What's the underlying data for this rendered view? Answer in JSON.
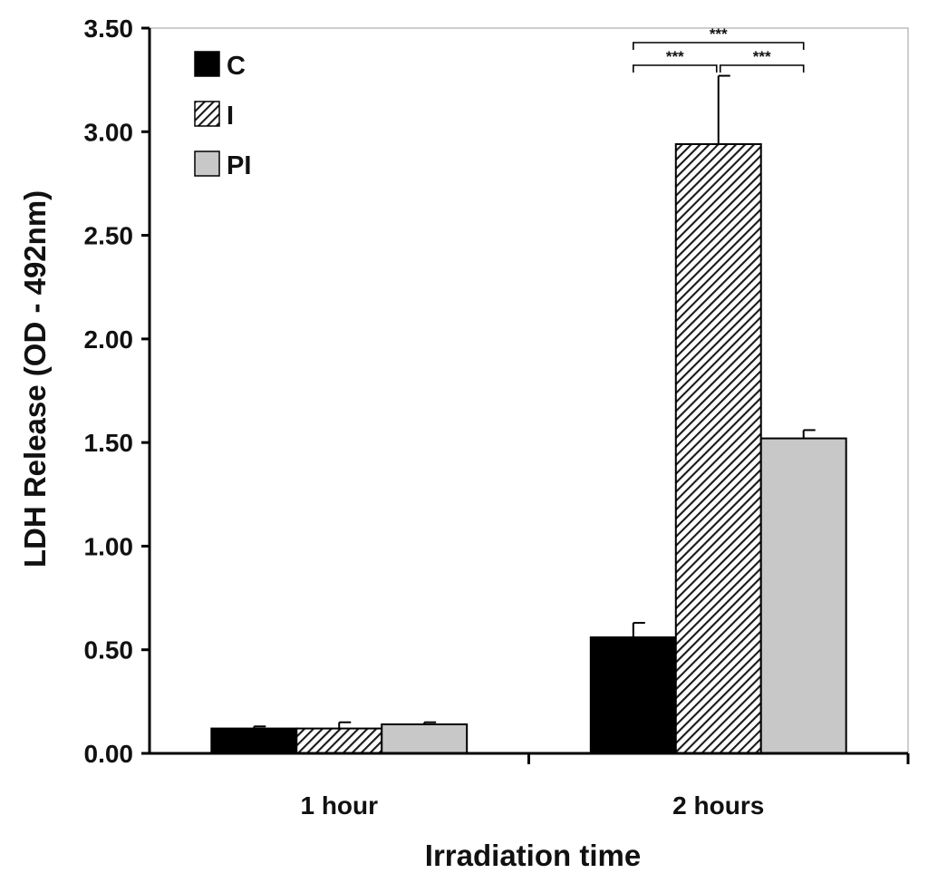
{
  "chart_data": {
    "type": "bar",
    "title": "",
    "xlabel": "Irradiation time",
    "ylabel": "LDH Release (OD - 492nm)",
    "categories": [
      "1 hour",
      "2 hours"
    ],
    "ylim": [
      0,
      3.5
    ],
    "yticks": [
      "0.00",
      "0.50",
      "1.00",
      "1.50",
      "2.00",
      "2.50",
      "3.00",
      "3.50"
    ],
    "grid": false,
    "legend_position": "top-left",
    "series": [
      {
        "name": "C",
        "values": [
          0.12,
          0.56
        ],
        "errors": [
          0.01,
          0.07
        ],
        "color": "#000000",
        "pattern": "solid"
      },
      {
        "name": "I",
        "values": [
          0.12,
          2.94
        ],
        "errors": [
          0.03,
          0.33
        ],
        "color": "#222222",
        "pattern": "hatched"
      },
      {
        "name": "PI",
        "values": [
          0.14,
          1.52
        ],
        "errors": [
          0.01,
          0.04
        ],
        "color": "#c8c8c8",
        "pattern": "solid"
      }
    ],
    "annotations": [
      {
        "label": "***",
        "category": "2 hours",
        "from_series": "C",
        "to_series": "PI",
        "level": 2
      },
      {
        "label": "***",
        "category": "2 hours",
        "from_series": "C",
        "to_series": "I",
        "level": 1
      },
      {
        "label": "***",
        "category": "2 hours",
        "from_series": "I",
        "to_series": "PI",
        "level": 1
      }
    ]
  }
}
